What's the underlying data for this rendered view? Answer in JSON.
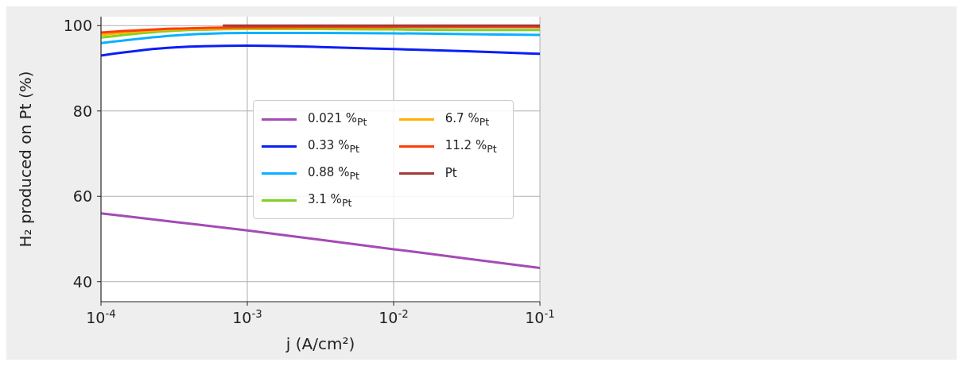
{
  "chart_data": {
    "type": "line",
    "xlabel": "j (A/cm²)",
    "ylabel": "H₂ produced on Pt (%)",
    "log": "x",
    "x": [
      0.0001,
      0.000316,
      0.001,
      0.00316,
      0.01,
      0.0316,
      0.1
    ],
    "xlim": [
      0.0001,
      0.1
    ],
    "xticks": [
      {
        "value": 0.0001,
        "label": "10$^{-4}$"
      },
      {
        "value": 0.001,
        "label": "10$^{-3}$"
      },
      {
        "value": 0.01,
        "label": "10$^{-2}$"
      },
      {
        "value": 0.1,
        "label": "10$^{-1}$"
      }
    ],
    "ylim": [
      35.3,
      102.1
    ],
    "yticks": [
      40,
      60,
      80,
      100
    ],
    "grid": true,
    "legend": "center right",
    "line_style": "solid",
    "series": [
      {
        "name": "0.021 %$_{Pt}$",
        "color": "#a44bb5",
        "values": [
          56,
          54,
          52,
          49.8,
          47.6,
          45.4,
          43.2
        ]
      },
      {
        "name": "0.33 %$_{Pt}$",
        "color": "#0a1ff5",
        "values": [
          93.0,
          94.9,
          95.3,
          95.0,
          94.5,
          94.0,
          93.4
        ]
      },
      {
        "name": "0.88 %$_{Pt}$",
        "color": "#0ab0ff",
        "values": [
          95.9,
          97.7,
          98.3,
          98.3,
          98.2,
          98.0,
          97.8
        ]
      },
      {
        "name": "3.1 %$_{Pt}$",
        "color": "#7ed321",
        "values": [
          97.2,
          98.8,
          99.2,
          99.2,
          99.1,
          99.0,
          99.0
        ]
      },
      {
        "name": "6.7 %$_{Pt}$",
        "color": "#ffb000",
        "values": [
          97.8,
          99.1,
          99.4,
          99.5,
          99.5,
          null,
          null
        ]
      },
      {
        "name": "11.2 %$_{Pt}$",
        "color": "#ff3d0a",
        "values": [
          98.4,
          99.3,
          99.6,
          99.7,
          99.7,
          99.7,
          99.7
        ]
      },
      {
        "name": "Pt",
        "color": "#a33a3a",
        "x": [
          0.00068,
          0.1
        ],
        "values": [
          100,
          100
        ]
      }
    ]
  }
}
